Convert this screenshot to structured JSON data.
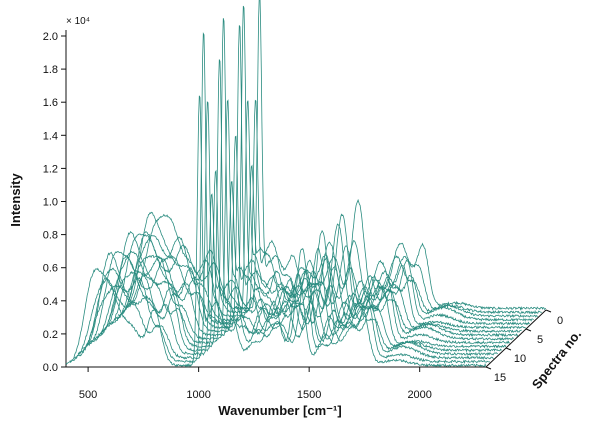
{
  "chart_data": {
    "type": "line",
    "projection": "3d-waterfall",
    "xlabel": "Wavenumber [cm⁻¹]",
    "ylabel": "Intensity",
    "zlabel": "Spectra no.",
    "y_multiplier": "× 10⁴",
    "y_ticks": [
      "0.0",
      "0.2",
      "0.4",
      "0.6",
      "0.8",
      "1.0",
      "1.2",
      "1.4",
      "1.6",
      "1.8",
      "2.0"
    ],
    "x_ticks": [
      "500",
      "1000",
      "1500",
      "2000"
    ],
    "z_ticks": [
      "0",
      "5",
      "10",
      "15"
    ],
    "xlim": [
      400,
      2300
    ],
    "ylim": [
      0,
      20000
    ],
    "zlim": [
      0,
      15
    ],
    "series_count": 16,
    "line_color": "#2a8c80",
    "baseline_offset": 100,
    "noise_amplitude": 70,
    "peaks": [
      {
        "center": 520,
        "width": 40,
        "height": 5000
      },
      {
        "center": 600,
        "width": 45,
        "height": 4800
      },
      {
        "center": 700,
        "width": 40,
        "height": 4500
      },
      {
        "center": 800,
        "width": 30,
        "height": 3500
      },
      {
        "center": 1004,
        "width": 10,
        "height": 18500
      },
      {
        "center": 1034,
        "width": 18,
        "height": 3000
      },
      {
        "center": 1080,
        "width": 30,
        "height": 4000
      },
      {
        "center": 1155,
        "width": 25,
        "height": 3000
      },
      {
        "center": 1250,
        "width": 35,
        "height": 3000
      },
      {
        "center": 1340,
        "width": 30,
        "height": 4000
      },
      {
        "center": 1450,
        "width": 28,
        "height": 6500
      },
      {
        "center": 1555,
        "width": 25,
        "height": 2500
      },
      {
        "center": 1660,
        "width": 40,
        "height": 4000
      },
      {
        "center": 1745,
        "width": 25,
        "height": 3500
      },
      {
        "center": 1890,
        "width": 60,
        "height": 700
      }
    ]
  }
}
